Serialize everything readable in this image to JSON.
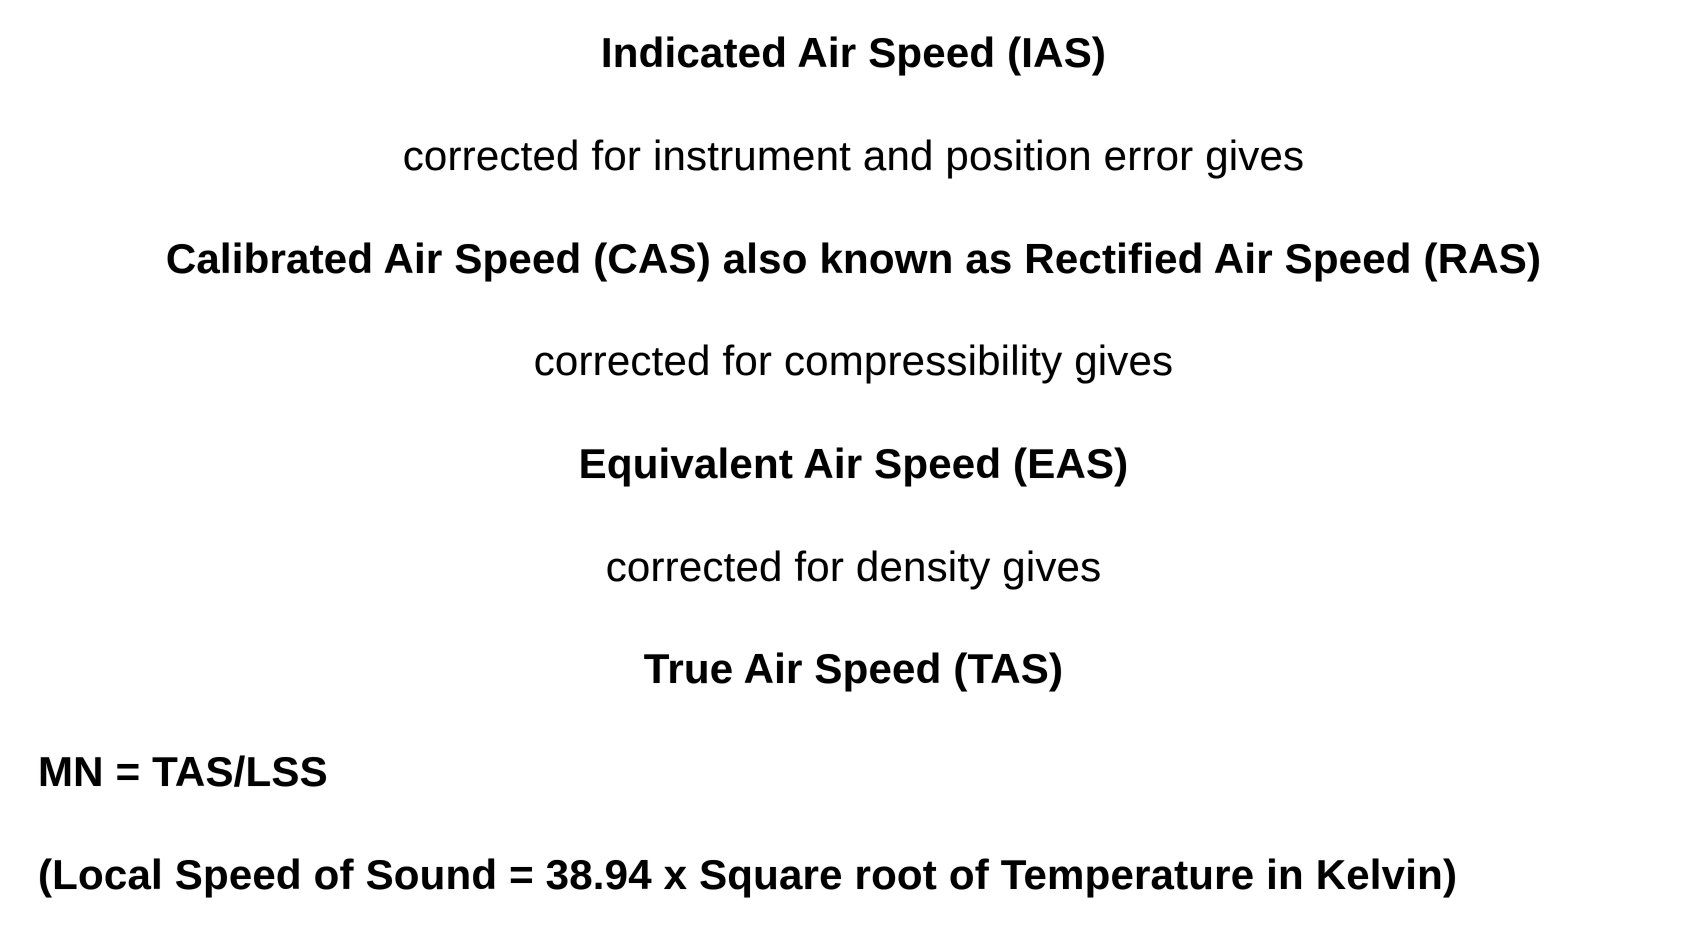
{
  "page": {
    "background_color": "#ffffff",
    "text_color": "#000000"
  },
  "slide": {
    "lines": [
      {
        "text": "Indicated Air Speed (IAS)",
        "style": "bold",
        "align": "center"
      },
      {
        "text": "corrected for instrument and position error gives",
        "style": "regular",
        "align": "center"
      },
      {
        "text": "Calibrated Air Speed (CAS) also known as Rectified Air Speed (RAS)",
        "style": "bold",
        "align": "center"
      },
      {
        "text": "corrected for compressibility gives",
        "style": "regular",
        "align": "center"
      },
      {
        "text": "Equivalent Air Speed (EAS)",
        "style": "bold",
        "align": "center"
      },
      {
        "text": "corrected for density gives",
        "style": "regular",
        "align": "center"
      },
      {
        "text": "True Air Speed (TAS)",
        "style": "bold",
        "align": "center"
      },
      {
        "text": "MN = TAS/LSS",
        "style": "bold",
        "align": "left"
      },
      {
        "text": "(Local Speed of Sound = 38.94 x Square root of Temperature in Kelvin)",
        "style": "bold",
        "align": "left"
      }
    ]
  }
}
